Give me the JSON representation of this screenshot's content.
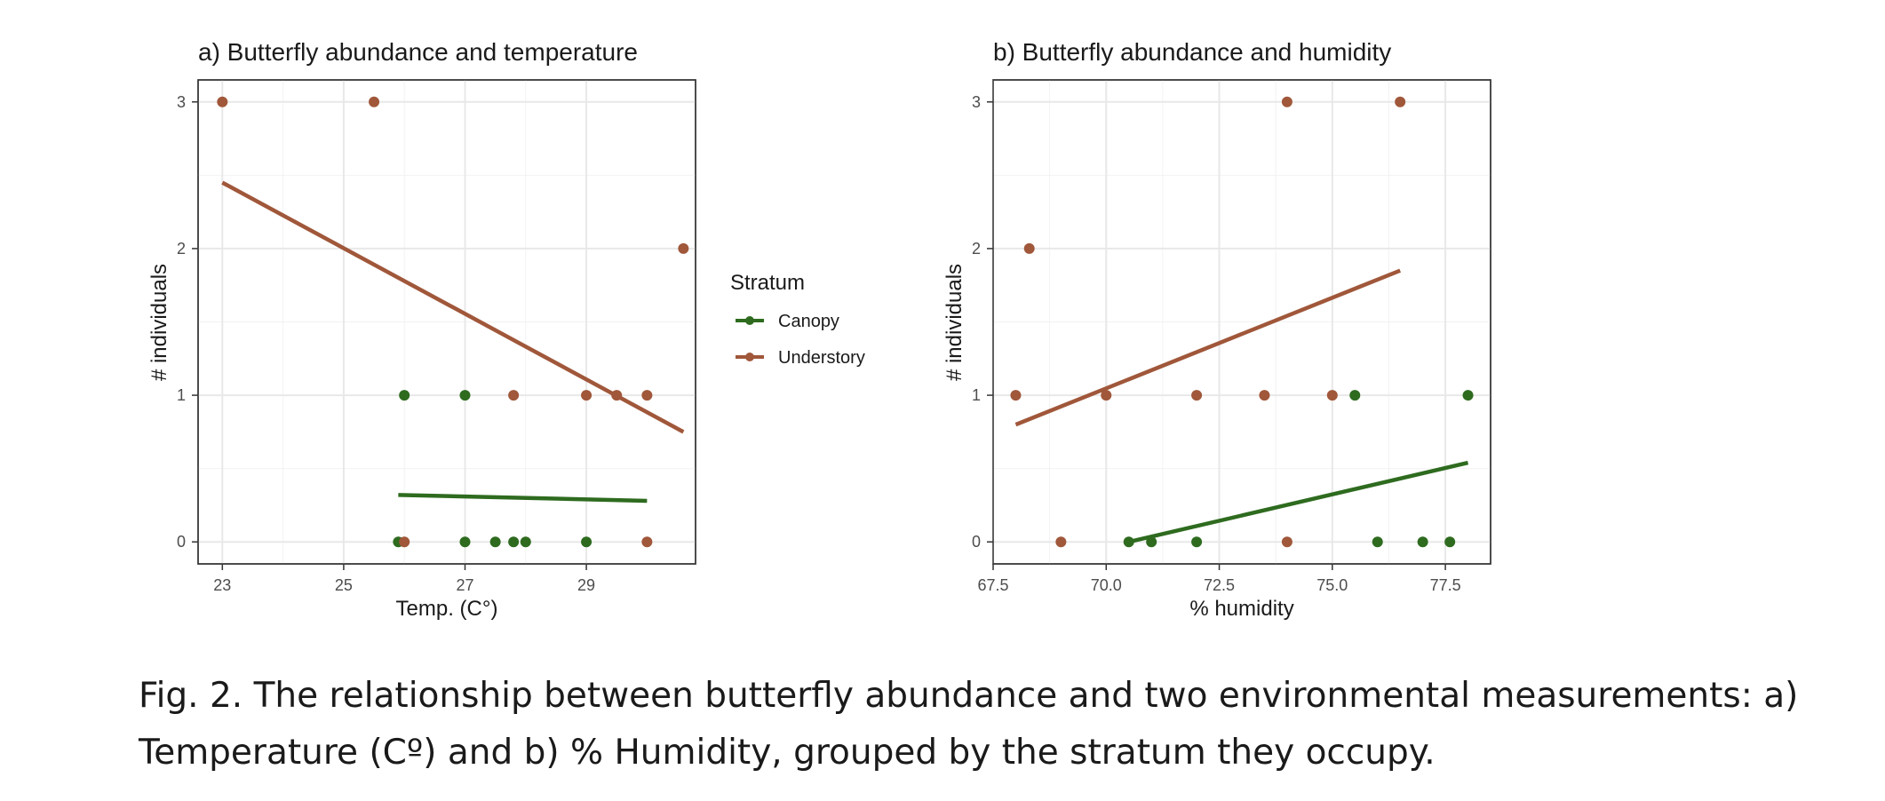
{
  "chart_data": [
    {
      "type": "scatter",
      "title": "a) Butterfly abundance and temperature",
      "xlabel": "Temp. (C°)",
      "ylabel": "# individuals",
      "xlim": [
        22.6,
        30.8
      ],
      "ylim": [
        -0.15,
        3.15
      ],
      "xticks": [
        23,
        25,
        27,
        29
      ],
      "yticks": [
        0,
        1,
        2,
        3
      ],
      "grid": true,
      "series": [
        {
          "name": "Canopy",
          "color": "#2e6b1f",
          "points": [
            [
              25.9,
              0
            ],
            [
              26.0,
              1
            ],
            [
              27.0,
              1
            ],
            [
              27.0,
              0
            ],
            [
              27.5,
              0
            ],
            [
              27.8,
              0
            ],
            [
              28.0,
              0
            ],
            [
              29.0,
              0
            ]
          ],
          "trend": [
            [
              25.9,
              0.32
            ],
            [
              30.0,
              0.28
            ]
          ]
        },
        {
          "name": "Understory",
          "color": "#a0573a",
          "points": [
            [
              23.0,
              3
            ],
            [
              25.5,
              3
            ],
            [
              26.0,
              0
            ],
            [
              27.8,
              1
            ],
            [
              29.0,
              1
            ],
            [
              29.5,
              1
            ],
            [
              30.0,
              1
            ],
            [
              30.0,
              0
            ],
            [
              30.6,
              2
            ]
          ],
          "trend": [
            [
              23.0,
              2.45
            ],
            [
              30.6,
              0.75
            ]
          ]
        }
      ]
    },
    {
      "type": "scatter",
      "title": "b) Butterfly abundance and humidity",
      "xlabel": "% humidity",
      "ylabel": "# individuals",
      "xlim": [
        67.5,
        78.5
      ],
      "ylim": [
        -0.15,
        3.15
      ],
      "xticks": [
        "67.5",
        "70.0",
        "72.5",
        "75.0",
        "77.5"
      ],
      "yticks": [
        0,
        1,
        2,
        3
      ],
      "grid": true,
      "series": [
        {
          "name": "Canopy",
          "color": "#2e6b1f",
          "points": [
            [
              70.5,
              0
            ],
            [
              71.0,
              0
            ],
            [
              72.0,
              0
            ],
            [
              75.5,
              1
            ],
            [
              76.0,
              0
            ],
            [
              77.0,
              0
            ],
            [
              77.6,
              0
            ],
            [
              78.0,
              1
            ]
          ],
          "trend": [
            [
              70.5,
              0
            ],
            [
              78.0,
              0.54
            ]
          ]
        },
        {
          "name": "Understory",
          "color": "#a0573a",
          "points": [
            [
              68.0,
              1
            ],
            [
              68.3,
              2
            ],
            [
              69.0,
              0
            ],
            [
              70.0,
              1
            ],
            [
              72.0,
              1
            ],
            [
              73.5,
              1
            ],
            [
              74.0,
              3
            ],
            [
              74.0,
              0
            ],
            [
              75.0,
              1
            ],
            [
              76.5,
              3
            ]
          ],
          "trend": [
            [
              68.0,
              0.8
            ],
            [
              76.5,
              1.85
            ]
          ]
        }
      ]
    }
  ],
  "legend": {
    "title": "Stratum",
    "items": [
      {
        "label": "Canopy",
        "color": "#2e6b1f"
      },
      {
        "label": "Understory",
        "color": "#a0573a"
      }
    ]
  },
  "caption": "Fig. 2. The relationship between butterfly abundance and two environmental measurements: a) Temperature (Cº) and b) % Humidity, grouped by the stratum they occupy."
}
